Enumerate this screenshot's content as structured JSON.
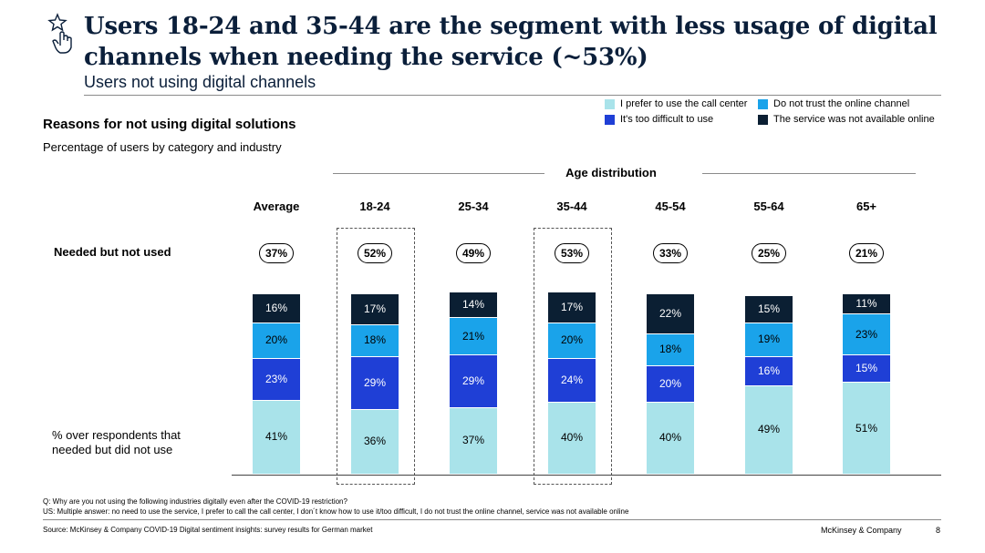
{
  "header": {
    "title": "Users 18-24 and 35-44 are the segment with less usage of digital channels when needing the service (~53%)",
    "subtitle": "Users not using digital channels"
  },
  "section": {
    "title": "Reasons for not using digital solutions",
    "subtitle": "Percentage of users by category and industry"
  },
  "labels": {
    "age_distribution": "Age distribution",
    "needed_not_used": "Needed but not used",
    "pct_over_respondents": "% over respondents that needed but did not use"
  },
  "colors": {
    "call_center": "#a9e3ea",
    "distrust": "#1aa3ea",
    "too_difficult": "#1f3fd6",
    "not_available": "#0b1f33"
  },
  "chart_data": {
    "type": "bar",
    "stacked": true,
    "title": "Reasons for not using digital solutions",
    "categories": [
      "Average",
      "18-24",
      "25-34",
      "35-44",
      "45-54",
      "55-64",
      "65+"
    ],
    "needed_but_not_used": [
      "37%",
      "52%",
      "49%",
      "53%",
      "33%",
      "25%",
      "21%"
    ],
    "highlighted": [
      "18-24",
      "35-44"
    ],
    "series": [
      {
        "name": "I prefer to use the call center",
        "values": [
          41,
          36,
          37,
          40,
          40,
          49,
          51
        ]
      },
      {
        "name": "It's too difficult to use",
        "values": [
          23,
          29,
          29,
          24,
          20,
          16,
          15
        ]
      },
      {
        "name": "Do not trust the online channel",
        "values": [
          20,
          18,
          21,
          20,
          18,
          19,
          23
        ]
      },
      {
        "name": "The service was not available online",
        "values": [
          16,
          17,
          14,
          17,
          22,
          15,
          11
        ]
      }
    ],
    "legend": [
      {
        "name": "I prefer to use the call center",
        "color": "#a9e3ea"
      },
      {
        "name": "Do not trust the online channel",
        "color": "#1aa3ea"
      },
      {
        "name": "It's too difficult to use",
        "color": "#1f3fd6"
      },
      {
        "name": "The service was not available online",
        "color": "#0b1f33"
      }
    ],
    "ylim": [
      0,
      100
    ],
    "unit": "%"
  },
  "notes": {
    "question": "Q: Why are you not using the following industries digitally even after the COVID-19 restriction?",
    "multiple_answer": "US: Multiple answer: no need to use the service, I prefer to call the call center, I don´t know how to use it/too difficult, I do not trust the online channel, service was not available online"
  },
  "footer": {
    "source": "Source: McKinsey & Company COVID-19 Digital sentiment insights: survey results for German market",
    "brand": "McKinsey & Company",
    "page_number": "8"
  }
}
